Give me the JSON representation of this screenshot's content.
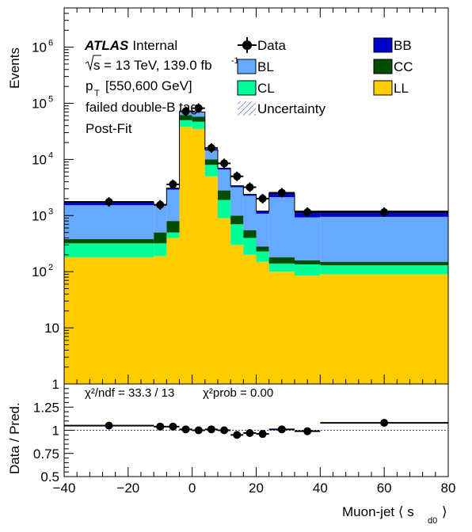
{
  "chart_data": [
    {
      "type": "bar",
      "stacked": true,
      "log_y": true,
      "ylim": [
        1,
        5000000
      ],
      "xlim": [
        -40,
        80
      ],
      "ylabel": "Events",
      "x_bins": [
        -40,
        -12,
        -8,
        -4,
        0,
        4,
        8,
        12,
        16,
        20,
        24,
        32,
        40,
        80
      ],
      "series": [
        {
          "name": "LL",
          "color": "#ffcc00",
          "values": [
            180,
            190,
            400,
            38000,
            35000,
            5000,
            900,
            300,
            200,
            150,
            100,
            85,
            90
          ]
        },
        {
          "name": "CL",
          "color": "#00ff99",
          "values": [
            140,
            130,
            100,
            12000,
            12000,
            3000,
            1000,
            400,
            200,
            80,
            40,
            50,
            40
          ]
        },
        {
          "name": "CC",
          "color": "#004d00",
          "values": [
            60,
            180,
            300,
            12000,
            11000,
            2000,
            900,
            300,
            150,
            50,
            40,
            25,
            20
          ]
        },
        {
          "name": "BL",
          "color": "#66aaff",
          "values": [
            1150,
            1000,
            2100,
            8000,
            11000,
            4400,
            3800,
            2200,
            1700,
            800,
            1950,
            770,
            800
          ]
        },
        {
          "name": "BB",
          "color": "#0000cc",
          "values": [
            200,
            80,
            200,
            1000,
            1000,
            600,
            400,
            200,
            150,
            120,
            370,
            270,
            250
          ]
        }
      ],
      "data_points": {
        "name": "Data",
        "x": [
          -26,
          -10,
          -6,
          -2,
          2,
          6,
          10,
          14,
          18,
          22,
          28,
          36,
          60
        ],
        "y": [
          1750,
          1550,
          3600,
          72000,
          82000,
          16000,
          8500,
          5000,
          3200,
          2000,
          2550,
          1150,
          1150
        ],
        "x_err": [
          14,
          2,
          2,
          2,
          2,
          2,
          2,
          2,
          2,
          2,
          4,
          4,
          20
        ]
      },
      "legend": {
        "entries": [
          "Data",
          "BL",
          "CL",
          "Uncertainty",
          "BB",
          "CC",
          "LL"
        ],
        "placement": "top-right"
      },
      "annotations": {
        "atlas": "ATLAS",
        "status": "Internal",
        "sqrt_s": "s",
        "energy": "= 13 TeV, 139.0 fb",
        "lumi_exp": "-1",
        "pt_p": "p",
        "pt_sub": "T",
        "pt_range": "[550,600 GeV]",
        "tag": "failed double-B tag",
        "fit": "Post-Fit"
      },
      "y_tick_labels": {
        "1": "1",
        "10": "10",
        "100": [
          "10",
          "2"
        ],
        "1000": [
          "10",
          "3"
        ],
        "10000": [
          "10",
          "4"
        ],
        "100000": [
          "10",
          "5"
        ],
        "1000000": [
          "10",
          "6"
        ]
      }
    },
    {
      "type": "scatter",
      "ylabel": "Data / Pred.",
      "xlabel": "Muon-jet ⟨ s",
      "xlabel_sub": "d0",
      "xlabel_end": "⟩",
      "xlim": [
        -40,
        80
      ],
      "ylim": [
        0.5,
        1.5
      ],
      "y_ticks": [
        0.5,
        0.75,
        1,
        1.25
      ],
      "y_tick_labels": [
        "0.5",
        "0.75",
        "1",
        "1.25"
      ],
      "x_ticks": [
        -40,
        -20,
        0,
        20,
        40,
        60,
        80
      ],
      "x_tick_labels": [
        "−40",
        "−20",
        "0",
        "20",
        "40",
        "60",
        "80"
      ],
      "x": [
        -26,
        -10,
        -6,
        -2,
        2,
        6,
        10,
        14,
        18,
        22,
        28,
        36,
        60
      ],
      "y": [
        1.05,
        1.04,
        1.04,
        1.01,
        1.0,
        1.01,
        1.0,
        0.95,
        0.97,
        0.96,
        1.01,
        0.99,
        1.08
      ],
      "x_err": [
        14,
        2,
        2,
        2,
        2,
        2,
        2,
        2,
        2,
        2,
        4,
        4,
        20
      ],
      "reference_line": 1,
      "chi2_text": "χ²/ndf = 33.3 / 13",
      "chi2_prob_text": "χ²prob = 0.00"
    }
  ]
}
